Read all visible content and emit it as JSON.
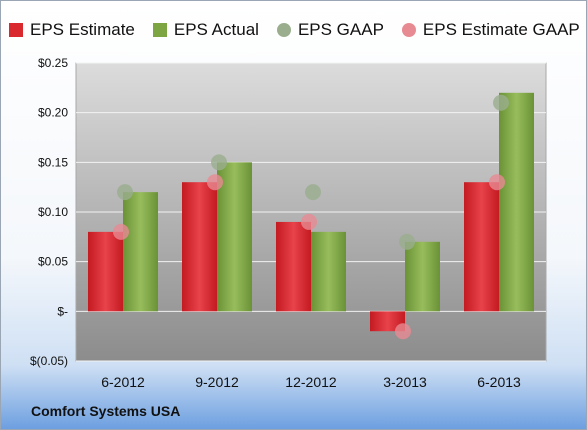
{
  "chart_data": {
    "type": "bar",
    "categories": [
      "6-2012",
      "9-2012",
      "12-2012",
      "3-2013",
      "6-2013"
    ],
    "series": [
      {
        "name": "EPS Estimate",
        "kind": "bar",
        "color": "#d9282e",
        "values": [
          0.08,
          0.13,
          0.09,
          -0.02,
          0.13
        ]
      },
      {
        "name": "EPS Actual",
        "kind": "bar",
        "color": "#7da542",
        "values": [
          0.12,
          0.15,
          0.08,
          0.07,
          0.22
        ]
      },
      {
        "name": "EPS GAAP",
        "kind": "point",
        "color": "#9aae8e",
        "values": [
          0.12,
          0.15,
          0.12,
          0.07,
          0.21
        ]
      },
      {
        "name": "EPS Estimate GAAP",
        "kind": "point",
        "color": "#e88a92",
        "values": [
          0.08,
          0.13,
          0.09,
          -0.02,
          0.13
        ]
      }
    ],
    "yticks": [
      "$0.25",
      "$0.20",
      "$0.15",
      "$0.10",
      "$0.05",
      "$-",
      "$(0.05)"
    ],
    "ylim": [
      -0.05,
      0.25
    ],
    "grid": true,
    "legend_position": "top"
  },
  "footer": {
    "company": "Comfort Systems USA"
  }
}
